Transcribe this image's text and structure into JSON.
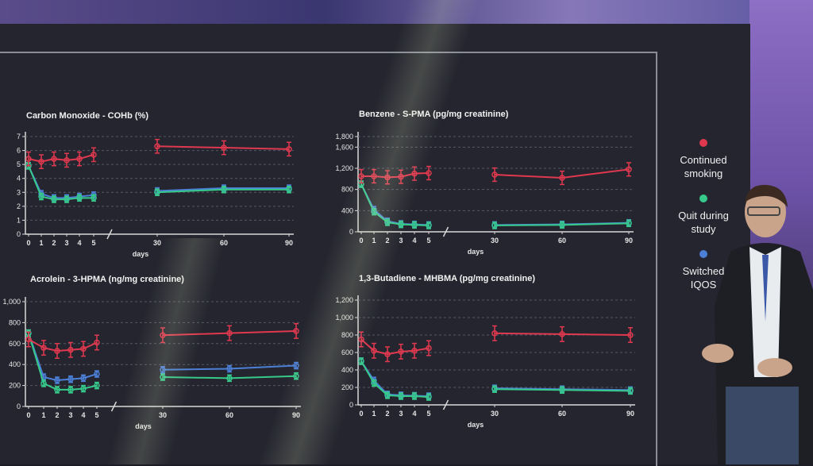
{
  "legend": [
    {
      "label": "Continued\nsmoking",
      "color": "#e0394f"
    },
    {
      "label": "Quit during\nstudy",
      "color": "#36c98a"
    },
    {
      "label": "Switched\nIQOS",
      "color": "#4c7fd6"
    }
  ],
  "chart_data": [
    {
      "type": "line",
      "title": "Carbon Monoxide - COHb (%)",
      "xlabel": "days",
      "ylabel": "",
      "x": [
        0,
        1,
        2,
        3,
        4,
        5,
        30,
        60,
        90
      ],
      "xticks": [
        "0",
        "1",
        "2",
        "3",
        "4",
        "5",
        "30",
        "60",
        "90"
      ],
      "ylim": [
        0,
        7
      ],
      "yticks": [
        "0",
        "1",
        "2",
        "3",
        "4",
        "5",
        "6",
        "7"
      ],
      "series": [
        {
          "name": "Continued smoking",
          "color": "#e0394f",
          "values": [
            5.4,
            5.2,
            5.4,
            5.3,
            5.4,
            5.7,
            6.3,
            6.2,
            6.1
          ]
        },
        {
          "name": "Quit during study",
          "color": "#36c98a",
          "values": [
            4.9,
            2.7,
            2.5,
            2.5,
            2.6,
            2.6,
            3.0,
            3.2,
            3.2
          ]
        },
        {
          "name": "Switched IQOS",
          "color": "#4c7fd6",
          "values": [
            4.9,
            2.9,
            2.6,
            2.6,
            2.7,
            2.8,
            3.1,
            3.3,
            3.3
          ]
        }
      ]
    },
    {
      "type": "line",
      "title": "Benzene - S-PMA (pg/mg creatinine)",
      "xlabel": "days",
      "ylabel": "",
      "x": [
        0,
        1,
        2,
        3,
        4,
        5,
        30,
        60,
        90
      ],
      "xticks": [
        "0",
        "1",
        "2",
        "3",
        "4",
        "5",
        "30",
        "60",
        "90"
      ],
      "ylim": [
        0,
        1800
      ],
      "yticks": [
        "0",
        "400",
        "800",
        "1,200",
        "1,600",
        "1,800"
      ],
      "series": [
        {
          "name": "Continued smoking",
          "color": "#e0394f",
          "values": [
            1050,
            1050,
            1030,
            1040,
            1100,
            1110,
            1080,
            1020,
            1180
          ]
        },
        {
          "name": "Quit during study",
          "color": "#36c98a",
          "values": [
            900,
            380,
            180,
            140,
            130,
            120,
            120,
            130,
            160
          ]
        },
        {
          "name": "Switched IQOS",
          "color": "#4c7fd6",
          "values": [
            900,
            420,
            200,
            150,
            140,
            130,
            130,
            140,
            170
          ]
        }
      ]
    },
    {
      "type": "line",
      "title": "Acrolein - 3-HPMA (ng/mg creatinine)",
      "xlabel": "days",
      "ylabel": "",
      "x": [
        0,
        1,
        2,
        3,
        4,
        5,
        30,
        60,
        90
      ],
      "xticks": [
        "0",
        "1",
        "2",
        "3",
        "4",
        "5",
        "30",
        "60",
        "90"
      ],
      "ylim": [
        0,
        1000
      ],
      "yticks": [
        "0",
        "200",
        "400",
        "600",
        "800",
        "1,000"
      ],
      "series": [
        {
          "name": "Continued smoking",
          "color": "#e0394f",
          "values": [
            640,
            560,
            530,
            540,
            550,
            610,
            680,
            700,
            720
          ]
        },
        {
          "name": "Quit during study",
          "color": "#36c98a",
          "values": [
            700,
            220,
            160,
            160,
            170,
            200,
            280,
            270,
            290
          ]
        },
        {
          "name": "Switched IQOS",
          "color": "#4c7fd6",
          "values": [
            700,
            280,
            250,
            260,
            270,
            310,
            350,
            360,
            390
          ]
        }
      ]
    },
    {
      "type": "line",
      "title": "1,3-Butadiene - MHBMA (pg/mg creatinine)",
      "xlabel": "days",
      "ylabel": "",
      "x": [
        0,
        1,
        2,
        3,
        4,
        5,
        30,
        60,
        90
      ],
      "xticks": [
        "0",
        "1",
        "2",
        "3",
        "4",
        "5",
        "30",
        "60",
        "90"
      ],
      "ylim": [
        0,
        1200
      ],
      "yticks": [
        "0",
        "200",
        "400",
        "600",
        "800",
        "1,000",
        "1,200"
      ],
      "series": [
        {
          "name": "Continued smoking",
          "color": "#e0394f",
          "values": [
            750,
            620,
            580,
            610,
            620,
            650,
            820,
            810,
            800
          ]
        },
        {
          "name": "Quit during study",
          "color": "#36c98a",
          "values": [
            500,
            250,
            110,
            100,
            100,
            90,
            180,
            170,
            160
          ]
        },
        {
          "name": "Switched IQOS",
          "color": "#4c7fd6",
          "values": [
            500,
            280,
            120,
            110,
            105,
            100,
            190,
            180,
            170
          ]
        }
      ]
    }
  ]
}
